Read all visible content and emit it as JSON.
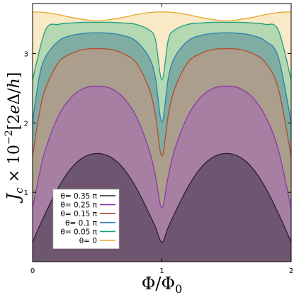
{
  "chart_data": {
    "type": "area",
    "xlabel": "Φ/Φ0",
    "ylabel": "Jc × 10−2 [2eΔ/h]",
    "xlim": [
      0,
      2
    ],
    "ylim": [
      0,
      3.72
    ],
    "x_ticks": [
      "0",
      "1",
      "2"
    ],
    "y_ticks": [
      "1",
      "2",
      "3"
    ],
    "grid": false,
    "legend_position": "lower-left",
    "series": [
      {
        "name": "θ= 0",
        "color": "#e6a52a",
        "fill": "#f9e9c6",
        "x": [
          0,
          0.1,
          0.2,
          0.3,
          0.4,
          0.5,
          0.6,
          0.7,
          0.8,
          0.9,
          1.0,
          1.1,
          1.2,
          1.3,
          1.4,
          1.5,
          1.6,
          1.7,
          1.8,
          1.9,
          2.0
        ],
        "y": [
          3.6,
          3.59,
          3.56,
          3.52,
          3.49,
          3.47,
          3.49,
          3.52,
          3.56,
          3.59,
          3.6,
          3.59,
          3.56,
          3.52,
          3.49,
          3.47,
          3.49,
          3.52,
          3.56,
          3.59,
          3.6
        ]
      },
      {
        "name": "θ= 0.05 π",
        "color": "#1e9e7e",
        "fill": "#b4d8b1",
        "x": [
          0,
          0.1,
          0.2,
          0.3,
          0.4,
          0.5,
          0.6,
          0.7,
          0.8,
          0.9,
          0.95,
          1.0,
          1.05,
          1.1,
          1.2,
          1.3,
          1.4,
          1.5,
          1.6,
          1.7,
          1.8,
          1.9,
          2.0
        ],
        "y": [
          2.62,
          3.34,
          3.42,
          3.44,
          3.45,
          3.45,
          3.45,
          3.44,
          3.42,
          3.34,
          3.2,
          2.62,
          3.2,
          3.34,
          3.42,
          3.44,
          3.45,
          3.45,
          3.45,
          3.44,
          3.42,
          3.34,
          2.62
        ]
      },
      {
        "name": "θ= 0.1 π",
        "color": "#2b7fb0",
        "fill": "#7fada2",
        "x": [
          0,
          0.05,
          0.1,
          0.2,
          0.3,
          0.4,
          0.5,
          0.6,
          0.7,
          0.8,
          0.9,
          0.95,
          1.0,
          1.05,
          1.1,
          1.2,
          1.3,
          1.4,
          1.5,
          1.6,
          1.7,
          1.8,
          1.9,
          2.0
        ],
        "y": [
          2.01,
          2.65,
          2.95,
          3.18,
          3.26,
          3.29,
          3.3,
          3.29,
          3.26,
          3.18,
          2.95,
          2.65,
          2.01,
          2.65,
          2.95,
          3.18,
          3.26,
          3.29,
          3.3,
          3.29,
          3.26,
          3.18,
          2.95,
          2.01
        ]
      },
      {
        "name": "θ= 0.15 π",
        "color": "#b5492f",
        "fill": "#ab9e8c",
        "x": [
          0,
          0.05,
          0.1,
          0.2,
          0.3,
          0.4,
          0.5,
          0.6,
          0.7,
          0.8,
          0.9,
          0.95,
          1.0,
          1.05,
          1.1,
          1.2,
          1.3,
          1.4,
          1.5,
          1.6,
          1.7,
          1.8,
          1.9,
          2.0
        ],
        "y": [
          1.52,
          2.12,
          2.5,
          2.87,
          3.0,
          3.06,
          3.07,
          3.06,
          3.0,
          2.87,
          2.5,
          2.12,
          1.52,
          2.12,
          2.5,
          2.87,
          3.0,
          3.06,
          3.07,
          3.06,
          3.0,
          2.87,
          2.5,
          1.52
        ]
      },
      {
        "name": "θ= 0.25 π",
        "color": "#8b3aa8",
        "fill": "#a67fa3",
        "x": [
          0,
          0.05,
          0.1,
          0.2,
          0.3,
          0.4,
          0.5,
          0.6,
          0.7,
          0.8,
          0.9,
          0.95,
          1.0,
          1.05,
          1.1,
          1.2,
          1.3,
          1.4,
          1.5,
          1.6,
          1.7,
          1.8,
          1.9,
          2.0
        ],
        "y": [
          0.77,
          1.24,
          1.62,
          2.1,
          2.37,
          2.5,
          2.53,
          2.5,
          2.37,
          2.1,
          1.62,
          1.24,
          0.77,
          1.24,
          1.62,
          2.1,
          2.37,
          2.5,
          2.53,
          2.5,
          2.37,
          2.1,
          1.62,
          0.77
        ]
      },
      {
        "name": "θ= 0.35 π",
        "color": "#2b1f33",
        "fill": "#6e5670",
        "x": [
          0,
          0.05,
          0.1,
          0.2,
          0.3,
          0.4,
          0.5,
          0.6,
          0.7,
          0.8,
          0.9,
          0.95,
          1.0,
          1.05,
          1.1,
          1.2,
          1.3,
          1.4,
          1.5,
          1.6,
          1.7,
          1.8,
          1.9,
          2.0
        ],
        "y": [
          0.28,
          0.5,
          0.7,
          1.07,
          1.35,
          1.51,
          1.56,
          1.51,
          1.35,
          1.07,
          0.7,
          0.5,
          0.28,
          0.5,
          0.7,
          1.07,
          1.35,
          1.51,
          1.56,
          1.51,
          1.35,
          1.07,
          0.7,
          0.28
        ]
      }
    ]
  }
}
